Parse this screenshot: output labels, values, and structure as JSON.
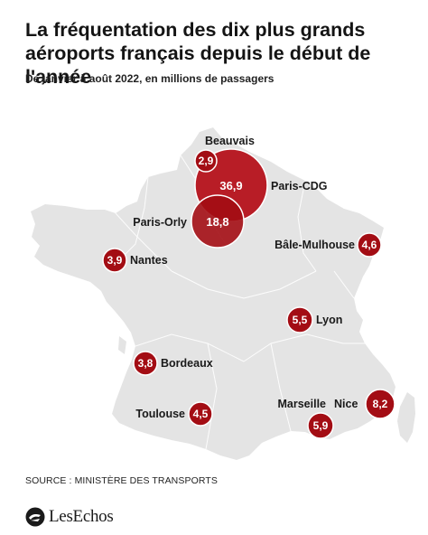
{
  "header": {
    "title": "La fréquentation des dix plus grands aéroports français depuis le début de l'année",
    "subtitle": "De janvier à août 2022, en millions de passagers"
  },
  "colors": {
    "bubble": "#a30d14",
    "bubble_large": "#b5121b",
    "land": "#e4e4e4",
    "border": "#ffffff"
  },
  "airports": [
    {
      "name": "Beauvais",
      "value": "2,9"
    },
    {
      "name": "Paris-CDG",
      "value": "36,9"
    },
    {
      "name": "Paris-Orly",
      "value": "18,8"
    },
    {
      "name": "Bâle-Mulhouse",
      "value": "4,6"
    },
    {
      "name": "Nantes",
      "value": "3,9"
    },
    {
      "name": "Lyon",
      "value": "5,5"
    },
    {
      "name": "Bordeaux",
      "value": "3,8"
    },
    {
      "name": "Toulouse",
      "value": "4,5"
    },
    {
      "name": "Marseille",
      "value": "5,9"
    },
    {
      "name": "Nice",
      "value": "8,2"
    }
  ],
  "footer": {
    "source": "SOURCE : MINISTÈRE DES TRANSPORTS",
    "logo_text": "LesEchos"
  }
}
